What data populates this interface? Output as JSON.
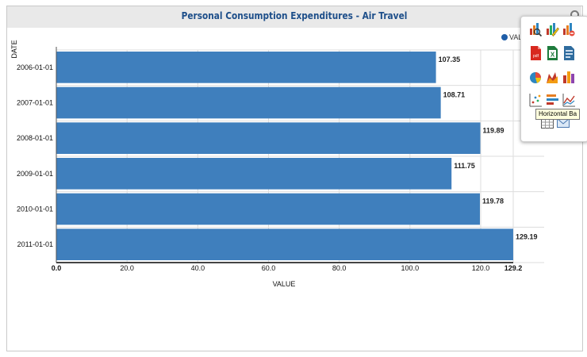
{
  "chart_data": {
    "type": "bar",
    "orientation": "horizontal",
    "title": "Personal Consumption Expenditures - Air Travel",
    "xlabel": "VALUE",
    "ylabel": "DATE",
    "categories": [
      "2006-01-01",
      "2007-01-01",
      "2008-01-01",
      "2009-01-01",
      "2010-01-01",
      "2011-01-01"
    ],
    "values": [
      107.35,
      108.71,
      119.89,
      111.75,
      119.78,
      129.19
    ],
    "value_labels": [
      "107.35",
      "108.71",
      "119.89",
      "111.75",
      "119.78",
      "129.19"
    ],
    "xlim": [
      0,
      129.2
    ],
    "xticks": [
      "0.0",
      "20.0",
      "40.0",
      "60.0",
      "80.0",
      "100.0",
      "120.0",
      "129.2"
    ],
    "xtick_values": [
      0,
      20,
      40,
      60,
      80,
      100,
      120,
      129.2
    ],
    "legend": {
      "label": "VAL",
      "position": "top-right"
    },
    "grid": true,
    "bar_color": "#3f7fbd"
  },
  "toolbox": {
    "tooltip": "Horizontal Ba"
  }
}
